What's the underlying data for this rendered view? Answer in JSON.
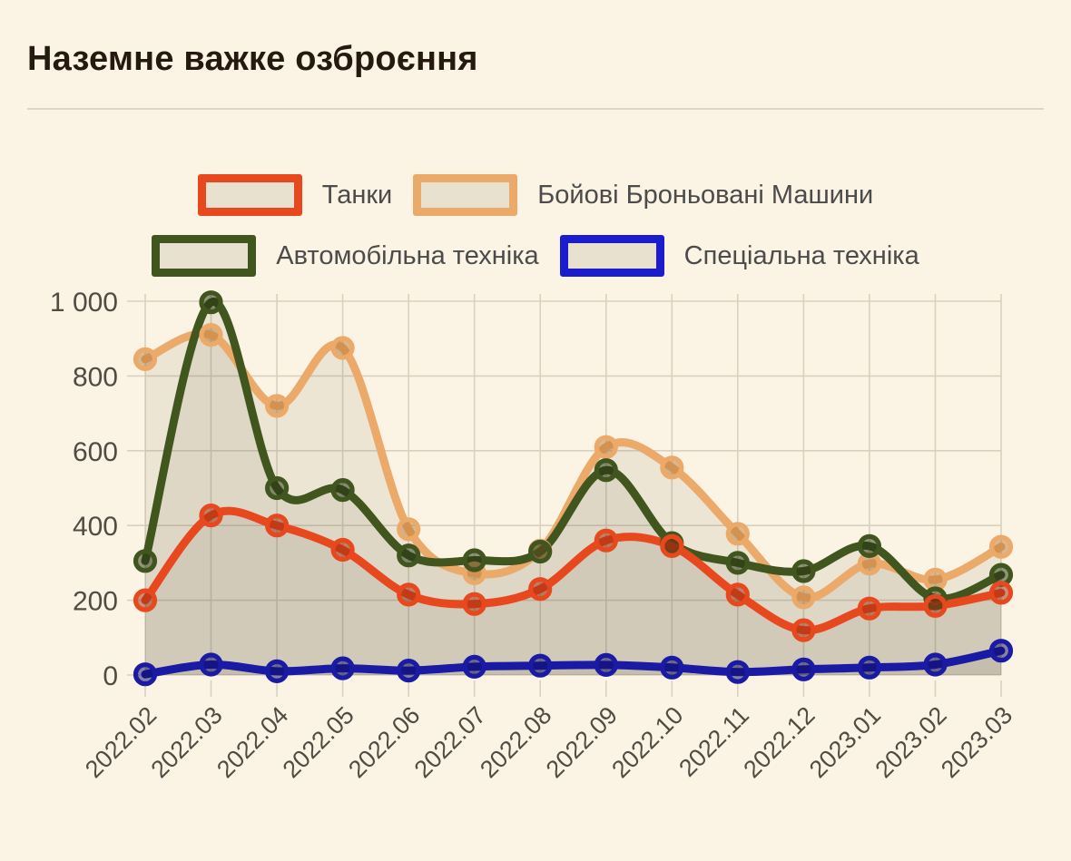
{
  "page": {
    "title": "Наземне важке озброєння"
  },
  "colors": {
    "background": "#fbf4e4",
    "divider": "#ded7c7",
    "title_text": "#261a10",
    "legend_text": "#4b4b4b",
    "legend_swatch_fill": "#e9e1d0",
    "grid": "#d8d1bf",
    "tick_text": "#504b43",
    "area_fill": "rgba(84,72,44,0.085)"
  },
  "chart_data": {
    "type": "line",
    "title": "Наземне важке озброєння",
    "categories": [
      "2022.02",
      "2022.03",
      "2022.04",
      "2022.05",
      "2022.06",
      "2022.07",
      "2022.08",
      "2022.09",
      "2022.10",
      "2022.11",
      "2022.12",
      "2023.01",
      "2023.02",
      "2023.03"
    ],
    "series": [
      {
        "name": "Танки",
        "color": "#e8481e",
        "marker_fill": "#9c2c0e",
        "values": [
          200,
          427,
          400,
          335,
          215,
          190,
          230,
          360,
          345,
          215,
          120,
          178,
          185,
          220
        ]
      },
      {
        "name": "Бойові Броньовані Машини",
        "color": "#ecaa6a",
        "marker_fill": "#b97a35",
        "values": [
          845,
          910,
          720,
          875,
          390,
          272,
          333,
          610,
          555,
          378,
          208,
          298,
          255,
          343
        ]
      },
      {
        "name": "Автомобільна техніка",
        "color": "#41551f",
        "marker_fill": "#24330f",
        "values": [
          305,
          997,
          500,
          495,
          320,
          307,
          330,
          548,
          353,
          300,
          278,
          345,
          205,
          268
        ]
      },
      {
        "name": "Спеціальна техніка",
        "color": "#1a1aa4",
        "legend_color": "#1a1ccd",
        "marker_fill": "#0d0d66",
        "values": [
          2,
          28,
          10,
          18,
          12,
          22,
          25,
          27,
          20,
          8,
          15,
          20,
          28,
          65
        ]
      }
    ],
    "ylim": [
      0,
      1000
    ],
    "yticks": [
      0,
      200,
      400,
      600,
      800,
      1000
    ],
    "ytick_labels": [
      "0",
      "200",
      "400",
      "600",
      "800",
      "1 000"
    ],
    "grid": true,
    "legend_position": "top",
    "legend_rows": [
      [
        0,
        1
      ],
      [
        2,
        3
      ]
    ]
  }
}
